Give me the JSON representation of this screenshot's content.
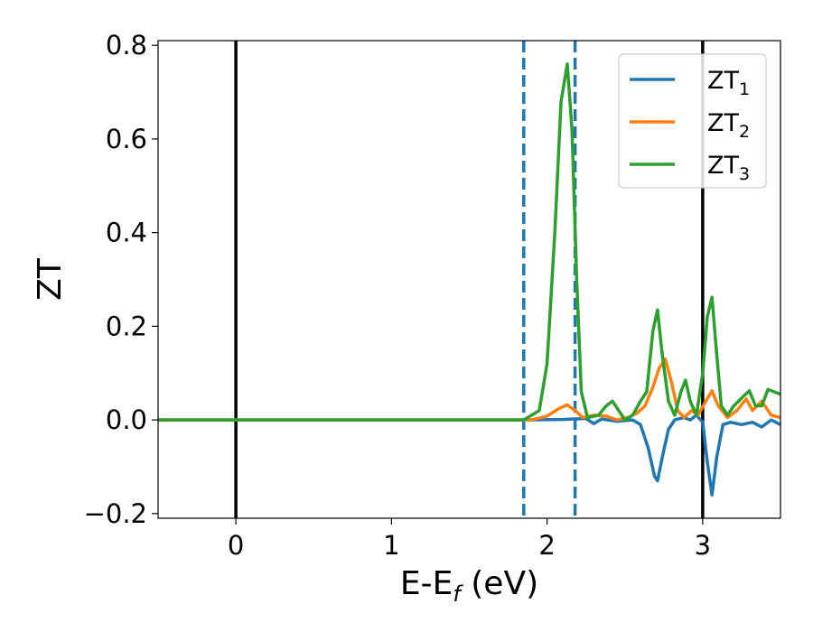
{
  "chart_data": {
    "type": "line",
    "title": "",
    "xlabel": {
      "main": "E-E",
      "sub": "f",
      "unit": " (eV)"
    },
    "ylabel": "ZT",
    "xlim": [
      -0.5,
      3.5
    ],
    "ylim": [
      -0.21,
      0.81
    ],
    "xticks": [
      0,
      1,
      2,
      3
    ],
    "yticks": [
      -0.2,
      0.0,
      0.2,
      0.4,
      0.6,
      0.8
    ],
    "xtick_labels": [
      "0",
      "1",
      "2",
      "3"
    ],
    "ytick_labels": [
      "−0.2",
      "0.0",
      "0.2",
      "0.4",
      "0.6",
      "0.8"
    ],
    "grid": false,
    "legend_position": "top-right",
    "vertical_lines": [
      {
        "x": 0.0,
        "style": "solid",
        "color": "#000000"
      },
      {
        "x": 3.0,
        "style": "solid",
        "color": "#000000"
      },
      {
        "x": 1.85,
        "style": "dashed",
        "color": "#1f77b4"
      },
      {
        "x": 2.18,
        "style": "dashed",
        "color": "#1f77b4"
      }
    ],
    "series": [
      {
        "name": {
          "main": "ZT",
          "sub": "1"
        },
        "color": "#1f77b4",
        "points": [
          [
            -0.5,
            0.0
          ],
          [
            1.85,
            0.0
          ],
          [
            2.1,
            0.001
          ],
          [
            2.25,
            0.003
          ],
          [
            2.3,
            -0.008
          ],
          [
            2.35,
            0.002
          ],
          [
            2.45,
            -0.003
          ],
          [
            2.55,
            0.0
          ],
          [
            2.6,
            -0.01
          ],
          [
            2.65,
            -0.06
          ],
          [
            2.69,
            -0.12
          ],
          [
            2.71,
            -0.13
          ],
          [
            2.74,
            -0.08
          ],
          [
            2.78,
            -0.02
          ],
          [
            2.82,
            0.0
          ],
          [
            2.88,
            0.005
          ],
          [
            2.92,
            0.0
          ],
          [
            2.96,
            0.01
          ],
          [
            3.0,
            -0.005
          ],
          [
            3.03,
            -0.09
          ],
          [
            3.06,
            -0.16
          ],
          [
            3.09,
            -0.08
          ],
          [
            3.13,
            -0.01
          ],
          [
            3.18,
            -0.005
          ],
          [
            3.25,
            -0.01
          ],
          [
            3.32,
            -0.005
          ],
          [
            3.38,
            -0.015
          ],
          [
            3.44,
            0.0
          ],
          [
            3.5,
            -0.01
          ]
        ]
      },
      {
        "name": {
          "main": "ZT",
          "sub": "2"
        },
        "color": "#ff7f0e",
        "points": [
          [
            -0.5,
            0.0
          ],
          [
            1.9,
            0.0
          ],
          [
            2.0,
            0.008
          ],
          [
            2.08,
            0.025
          ],
          [
            2.13,
            0.032
          ],
          [
            2.18,
            0.02
          ],
          [
            2.23,
            0.005
          ],
          [
            2.3,
            0.01
          ],
          [
            2.38,
            0.008
          ],
          [
            2.45,
            0.0
          ],
          [
            2.52,
            0.005
          ],
          [
            2.58,
            0.015
          ],
          [
            2.63,
            0.03
          ],
          [
            2.68,
            0.07
          ],
          [
            2.72,
            0.11
          ],
          [
            2.76,
            0.13
          ],
          [
            2.8,
            0.08
          ],
          [
            2.84,
            0.02
          ],
          [
            2.88,
            0.005
          ],
          [
            2.93,
            0.02
          ],
          [
            2.97,
            0.01
          ],
          [
            3.02,
            0.04
          ],
          [
            3.06,
            0.062
          ],
          [
            3.1,
            0.03
          ],
          [
            3.16,
            0.005
          ],
          [
            3.22,
            0.02
          ],
          [
            3.28,
            0.045
          ],
          [
            3.32,
            0.02
          ],
          [
            3.38,
            0.04
          ],
          [
            3.44,
            0.01
          ],
          [
            3.5,
            0.005
          ]
        ]
      },
      {
        "name": {
          "main": "ZT",
          "sub": "3"
        },
        "color": "#2ca02c",
        "points": [
          [
            -0.5,
            0.0
          ],
          [
            1.85,
            0.0
          ],
          [
            1.95,
            0.02
          ],
          [
            2.0,
            0.12
          ],
          [
            2.05,
            0.4
          ],
          [
            2.09,
            0.68
          ],
          [
            2.13,
            0.76
          ],
          [
            2.16,
            0.62
          ],
          [
            2.19,
            0.3
          ],
          [
            2.22,
            0.06
          ],
          [
            2.26,
            0.005
          ],
          [
            2.33,
            0.01
          ],
          [
            2.38,
            0.03
          ],
          [
            2.42,
            0.04
          ],
          [
            2.46,
            0.02
          ],
          [
            2.5,
            0.0
          ],
          [
            2.55,
            0.01
          ],
          [
            2.6,
            0.04
          ],
          [
            2.64,
            0.06
          ],
          [
            2.68,
            0.19
          ],
          [
            2.71,
            0.235
          ],
          [
            2.74,
            0.14
          ],
          [
            2.78,
            0.04
          ],
          [
            2.82,
            0.01
          ],
          [
            2.86,
            0.06
          ],
          [
            2.89,
            0.085
          ],
          [
            2.92,
            0.04
          ],
          [
            2.96,
            0.01
          ],
          [
            3.0,
            0.1
          ],
          [
            3.03,
            0.22
          ],
          [
            3.06,
            0.262
          ],
          [
            3.09,
            0.14
          ],
          [
            3.12,
            0.03
          ],
          [
            3.16,
            0.01
          ],
          [
            3.2,
            0.03
          ],
          [
            3.26,
            0.05
          ],
          [
            3.3,
            0.062
          ],
          [
            3.34,
            0.03
          ],
          [
            3.38,
            0.03
          ],
          [
            3.42,
            0.065
          ],
          [
            3.46,
            0.06
          ],
          [
            3.5,
            0.055
          ]
        ]
      }
    ]
  }
}
